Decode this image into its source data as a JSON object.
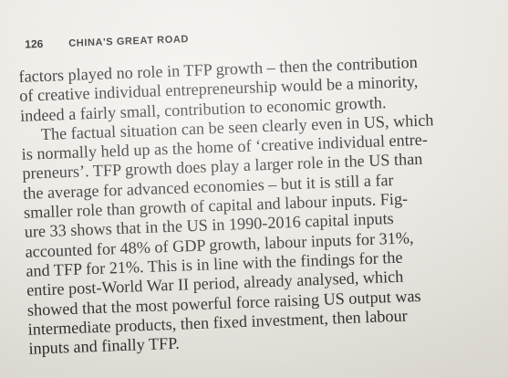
{
  "header": {
    "page_number": "126",
    "running_title": "CHINA'S GREAT ROAD"
  },
  "lines": [
    "factors played no role in TFP growth – then the contribution",
    "of creative individual entrepreneurship would be a minority,",
    "indeed a fairly small, contribution to economic growth.",
    "The factual situation can be seen clearly even in US, which",
    "is normally held up as the home of ‘creative individual entre-",
    "preneurs’. TFP growth does play a larger role in the US than",
    "the average for advanced economies – but it is still a far",
    "smaller role than growth of capital and labour inputs. Fig-",
    "ure 33 shows that in the US in 1990-2016 capital inputs",
    "accounted for 48% of GDP growth, labour inputs for 31%,",
    "and TFP for 21%. This is in line with the findings for the",
    "entire post-World War II period, already analysed, which",
    "showed that the most powerful force raising US output was",
    "intermediate products, then fixed investment, then labour",
    "inputs and finally TFP."
  ]
}
